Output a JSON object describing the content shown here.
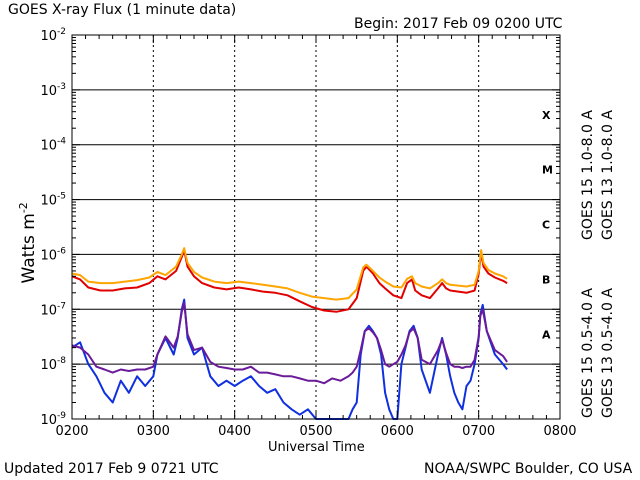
{
  "header": {
    "title": "GOES X-ray Flux (1 minute data)",
    "begin": "Begin: 2017 Feb 09 0200 UTC"
  },
  "footer": {
    "updated": "Updated 2017 Feb  9 0721 UTC",
    "credit": "NOAA/SWPC Boulder, CO USA"
  },
  "chart_data": {
    "type": "line",
    "title": "GOES X-ray Flux (1 minute data)",
    "xlabel": "Universal Time",
    "ylabel": "Watts m",
    "ylabel_sup": "-2",
    "yscale": "log",
    "xlim": [
      2.0,
      8.0
    ],
    "ylim": [
      1e-09,
      0.01
    ],
    "x_ticks": [
      2,
      3,
      4,
      5,
      6,
      7,
      8
    ],
    "x_tick_labels": [
      "0200",
      "0300",
      "0400",
      "0500",
      "0600",
      "0700",
      "0800"
    ],
    "y_tick_exponents": [
      -9,
      -8,
      -7,
      -6,
      -5,
      -4,
      -3,
      -2
    ],
    "y_tick_base": "10",
    "grid": true,
    "flare_classes": [
      {
        "label": "X",
        "level": 0.00035
      },
      {
        "label": "M",
        "level": 3.5e-05
      },
      {
        "label": "C",
        "level": 3.5e-06
      },
      {
        "label": "B",
        "level": 3.5e-07
      },
      {
        "label": "A",
        "level": 3.5e-08
      }
    ],
    "series": [
      {
        "name": "GOES 15 1.0-8.0 A",
        "color": "#e00000",
        "x": [
          2.0,
          2.1,
          2.2,
          2.35,
          2.5,
          2.65,
          2.8,
          2.95,
          3.05,
          3.15,
          3.28,
          3.35,
          3.38,
          3.42,
          3.5,
          3.6,
          3.75,
          3.9,
          4.05,
          4.2,
          4.35,
          4.5,
          4.65,
          4.8,
          4.95,
          5.1,
          5.25,
          5.4,
          5.5,
          5.58,
          5.62,
          5.7,
          5.78,
          5.85,
          5.95,
          6.05,
          6.12,
          6.18,
          6.22,
          6.3,
          6.4,
          6.5,
          6.55,
          6.6,
          6.65,
          6.75,
          6.85,
          6.95,
          7.0,
          7.03,
          7.06,
          7.12,
          7.2,
          7.3,
          7.35
        ],
        "values": [
          4e-07,
          3.5e-07,
          2.5e-07,
          2.2e-07,
          2.2e-07,
          2.4e-07,
          2.5e-07,
          3e-07,
          4e-07,
          3.5e-07,
          5e-07,
          9e-07,
          1.2e-06,
          6e-07,
          4e-07,
          3e-07,
          2.5e-07,
          2.3e-07,
          2.5e-07,
          2.3e-07,
          2.1e-07,
          2e-07,
          1.8e-07,
          1.4e-07,
          1.1e-07,
          9.5e-08,
          9e-08,
          1e-07,
          1.6e-07,
          5e-07,
          6e-07,
          4.5e-07,
          3e-07,
          2.4e-07,
          1.8e-07,
          1.6e-07,
          3e-07,
          3.5e-07,
          2.2e-07,
          1.8e-07,
          1.6e-07,
          2.4e-07,
          3e-07,
          2.4e-07,
          2.2e-07,
          2.1e-07,
          2e-07,
          2.2e-07,
          4.5e-07,
          1.1e-06,
          6e-07,
          4.5e-07,
          3.8e-07,
          3.3e-07,
          3e-07
        ]
      },
      {
        "name": "GOES 13 1.0-8.0 A",
        "color": "#ffa500",
        "x": [
          2.0,
          2.1,
          2.2,
          2.35,
          2.5,
          2.65,
          2.8,
          2.95,
          3.05,
          3.15,
          3.28,
          3.35,
          3.38,
          3.42,
          3.5,
          3.6,
          3.75,
          3.9,
          4.05,
          4.2,
          4.35,
          4.5,
          4.65,
          4.8,
          4.95,
          5.1,
          5.25,
          5.4,
          5.5,
          5.58,
          5.62,
          5.7,
          5.78,
          5.85,
          5.95,
          6.05,
          6.12,
          6.18,
          6.22,
          6.3,
          6.4,
          6.5,
          6.55,
          6.6,
          6.65,
          6.75,
          6.85,
          6.95,
          7.0,
          7.03,
          7.06,
          7.12,
          7.2,
          7.3,
          7.35
        ],
        "values": [
          4.5e-07,
          4.2e-07,
          3.2e-07,
          3e-07,
          3e-07,
          3.2e-07,
          3.4e-07,
          3.8e-07,
          4.8e-07,
          4.2e-07,
          6e-07,
          1e-06,
          1.3e-06,
          7e-07,
          4.8e-07,
          3.8e-07,
          3.2e-07,
          3e-07,
          3.2e-07,
          3e-07,
          2.8e-07,
          2.6e-07,
          2.4e-07,
          2e-07,
          1.7e-07,
          1.6e-07,
          1.5e-07,
          1.6e-07,
          2.3e-07,
          5.8e-07,
          6.5e-07,
          5e-07,
          3.8e-07,
          3.2e-07,
          2.6e-07,
          2.5e-07,
          3.6e-07,
          4e-07,
          3e-07,
          2.6e-07,
          2.4e-07,
          3e-07,
          3.5e-07,
          3e-07,
          2.8e-07,
          2.7e-07,
          2.6e-07,
          2.8e-07,
          5e-07,
          1.2e-06,
          7e-07,
          5.2e-07,
          4.5e-07,
          4e-07,
          3.6e-07
        ]
      },
      {
        "name": "GOES 15 0.5-4.0 A",
        "color": "#1030e0",
        "x": [
          2.0,
          2.1,
          2.2,
          2.3,
          2.4,
          2.5,
          2.6,
          2.7,
          2.8,
          2.9,
          3.0,
          3.05,
          3.15,
          3.25,
          3.3,
          3.35,
          3.38,
          3.42,
          3.5,
          3.6,
          3.7,
          3.8,
          3.9,
          4.0,
          4.1,
          4.2,
          4.3,
          4.4,
          4.5,
          4.6,
          4.7,
          4.8,
          4.9,
          5.0,
          5.1,
          5.2,
          5.3,
          5.4,
          5.45,
          5.5,
          5.55,
          5.6,
          5.65,
          5.7,
          5.75,
          5.8,
          5.85,
          5.9,
          5.95,
          6.0,
          6.05,
          6.1,
          6.15,
          6.2,
          6.25,
          6.3,
          6.4,
          6.5,
          6.55,
          6.6,
          6.65,
          6.7,
          6.75,
          6.8,
          6.85,
          6.9,
          6.95,
          7.0,
          7.02,
          7.05,
          7.1,
          7.2,
          7.3,
          7.35
        ],
        "values": [
          2e-08,
          2.5e-08,
          1e-08,
          6e-09,
          3e-09,
          2e-09,
          5e-09,
          3e-09,
          6e-09,
          4e-09,
          6e-09,
          1.5e-08,
          3e-08,
          1.5e-08,
          3e-08,
          1e-07,
          1.5e-07,
          3e-08,
          1.5e-08,
          2e-08,
          6e-09,
          4e-09,
          5e-09,
          4e-09,
          5e-09,
          6e-09,
          4e-09,
          3e-09,
          3.5e-09,
          2e-09,
          1.5e-09,
          1.2e-09,
          1.5e-09,
          1e-09,
          1e-09,
          1e-09,
          1e-09,
          1e-09,
          1.5e-09,
          2e-09,
          1.5e-08,
          4e-08,
          5e-08,
          4e-08,
          3e-08,
          1.5e-08,
          3e-09,
          1.5e-09,
          1e-09,
          1e-09,
          1e-08,
          2e-08,
          4e-08,
          5e-08,
          3e-08,
          8e-09,
          3e-09,
          1.5e-08,
          3e-08,
          1.5e-08,
          6e-09,
          3e-09,
          2e-09,
          1.5e-09,
          4e-09,
          5e-09,
          1e-08,
          3e-08,
          8e-08,
          1.2e-07,
          4e-08,
          1.5e-08,
          1e-08,
          8e-09
        ]
      },
      {
        "name": "GOES 13 0.5-4.0 A",
        "color": "#6a1b9a",
        "x": [
          2.0,
          2.1,
          2.2,
          2.3,
          2.4,
          2.5,
          2.6,
          2.7,
          2.8,
          2.9,
          3.0,
          3.05,
          3.15,
          3.25,
          3.3,
          3.35,
          3.38,
          3.42,
          3.5,
          3.6,
          3.7,
          3.8,
          3.9,
          4.0,
          4.1,
          4.2,
          4.3,
          4.4,
          4.5,
          4.6,
          4.7,
          4.8,
          4.9,
          5.0,
          5.1,
          5.2,
          5.3,
          5.4,
          5.45,
          5.5,
          5.55,
          5.6,
          5.65,
          5.7,
          5.75,
          5.8,
          5.85,
          5.9,
          5.95,
          6.0,
          6.05,
          6.1,
          6.15,
          6.2,
          6.25,
          6.3,
          6.4,
          6.5,
          6.55,
          6.6,
          6.65,
          6.7,
          6.75,
          6.8,
          6.85,
          6.9,
          6.95,
          7.0,
          7.02,
          7.05,
          7.1,
          7.2,
          7.3,
          7.35
        ],
        "values": [
          2.2e-08,
          2e-08,
          1.5e-08,
          9e-09,
          8e-09,
          7e-09,
          8e-09,
          7.5e-09,
          8e-09,
          8e-09,
          9e-09,
          1.5e-08,
          3.2e-08,
          2e-08,
          3.2e-08,
          9e-08,
          1.3e-07,
          3.5e-08,
          1.8e-08,
          2e-08,
          1.1e-08,
          9e-09,
          8.5e-09,
          8e-09,
          8e-09,
          9e-09,
          7e-09,
          7e-09,
          6.5e-09,
          6e-09,
          6e-09,
          5.5e-09,
          5e-09,
          5e-09,
          4.5e-09,
          5.5e-09,
          5e-09,
          6e-09,
          7e-09,
          9e-09,
          1.8e-08,
          4e-08,
          4.5e-08,
          3.8e-08,
          3e-08,
          1.8e-08,
          1e-08,
          9e-09,
          1e-08,
          1.1e-08,
          1.5e-08,
          2.2e-08,
          3.8e-08,
          4.5e-08,
          3e-08,
          1.2e-08,
          1e-08,
          1.8e-08,
          2.8e-08,
          1.6e-08,
          1e-08,
          9e-09,
          9e-09,
          8.5e-09,
          9e-09,
          9e-09,
          1.2e-08,
          3.2e-08,
          7.5e-08,
          1e-07,
          4e-08,
          1.8e-08,
          1.4e-08,
          1.1e-08
        ]
      }
    ]
  }
}
